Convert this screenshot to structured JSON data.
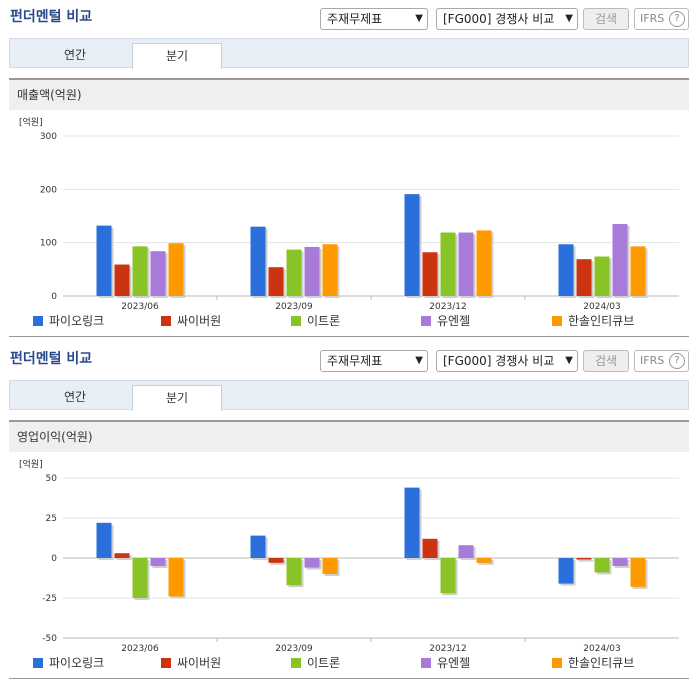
{
  "panels": [
    {
      "title": "펀더멘털 비교",
      "select1": "주재무제표",
      "select2": "[FG000] 경쟁사 비교",
      "search_label": "검색",
      "ifrs_label": "IFRS",
      "ifrs_help": "?",
      "tabs": [
        "연간",
        "분기"
      ],
      "active_tab": "분기",
      "subtitle": "매출액(억원)"
    },
    {
      "title": "펀더멘털 비교",
      "select1": "주재무제표",
      "select2": "[FG000] 경쟁사 비교",
      "search_label": "검색",
      "ifrs_label": "IFRS",
      "ifrs_help": "?",
      "tabs": [
        "연간",
        "분기"
      ],
      "active_tab": "분기",
      "subtitle": "영업이익(억원)"
    }
  ],
  "chart_data": [
    {
      "type": "bar",
      "unit_label": "[억원]",
      "categories": [
        "2023/06",
        "2023/09",
        "2023/12",
        "2024/03"
      ],
      "ylim": [
        0,
        300
      ],
      "yticks": [
        "0",
        "100",
        "200",
        "300"
      ],
      "series": [
        {
          "name": "파이오링크",
          "color": "#2a6fdb",
          "values": [
            132,
            130,
            191,
            97
          ]
        },
        {
          "name": "싸이버원",
          "color": "#cc3311",
          "values": [
            59,
            54,
            82,
            69
          ]
        },
        {
          "name": "이트론",
          "color": "#88c425",
          "values": [
            93,
            87,
            119,
            74
          ]
        },
        {
          "name": "유엔젤",
          "color": "#a97bd8",
          "values": [
            84,
            92,
            119,
            135
          ]
        },
        {
          "name": "한솔인티큐브",
          "color": "#ff9900",
          "values": [
            99,
            97,
            123,
            93
          ]
        }
      ]
    },
    {
      "type": "bar",
      "unit_label": "[억원]",
      "categories": [
        "2023/06",
        "2023/09",
        "2023/12",
        "2024/03"
      ],
      "ylim": [
        -50,
        50
      ],
      "yticks": [
        "-50",
        "-25",
        "0",
        "25",
        "50"
      ],
      "series": [
        {
          "name": "파이오링크",
          "color": "#2a6fdb",
          "values": [
            22,
            14,
            44,
            -16
          ]
        },
        {
          "name": "싸이버원",
          "color": "#cc3311",
          "values": [
            3,
            -3,
            12,
            -1
          ]
        },
        {
          "name": "이트론",
          "color": "#88c425",
          "values": [
            -25,
            -17,
            -22,
            -9
          ]
        },
        {
          "name": "유엔젤",
          "color": "#a97bd8",
          "values": [
            -5,
            -6,
            8,
            -5
          ]
        },
        {
          "name": "한솔인티큐브",
          "color": "#ff9900",
          "values": [
            -24,
            -10,
            -3,
            -18
          ]
        }
      ]
    }
  ]
}
